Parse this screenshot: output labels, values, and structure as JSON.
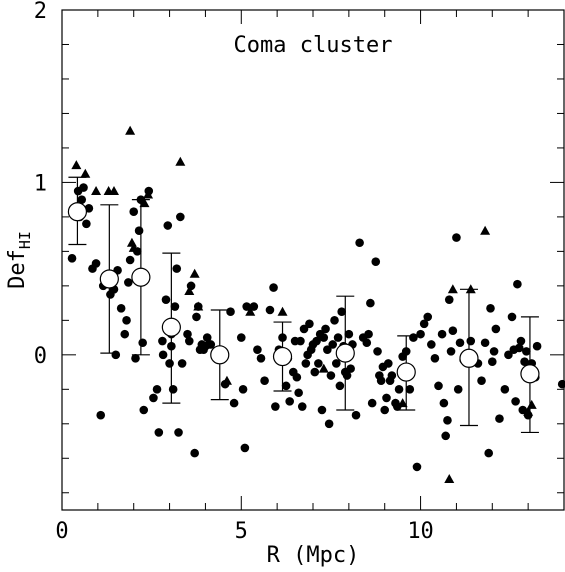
{
  "chart_data": {
    "type": "scatter",
    "title": "Coma cluster",
    "xlabel": "R (Mpc)",
    "ylabel_main": "Def",
    "ylabel_sub": "HI",
    "xlim": [
      0,
      14
    ],
    "ylim": [
      -0.9,
      2
    ],
    "x_ticks": [
      0,
      5,
      10
    ],
    "y_ticks": [
      0,
      1,
      2
    ],
    "grid": false,
    "series": [
      {
        "marker": "filled-circle",
        "points": [
          [
            0.28,
            0.56
          ],
          [
            0.38,
            0.83
          ],
          [
            0.45,
            0.95
          ],
          [
            0.5,
            0.8
          ],
          [
            0.55,
            0.9
          ],
          [
            0.6,
            0.97
          ],
          [
            0.68,
            0.76
          ],
          [
            0.75,
            0.85
          ],
          [
            0.85,
            0.5
          ],
          [
            0.95,
            0.53
          ],
          [
            1.08,
            -0.35
          ],
          [
            1.15,
            0.4
          ],
          [
            1.35,
            0.35
          ],
          [
            1.45,
            0.38
          ],
          [
            1.5,
            0.0
          ],
          [
            1.55,
            0.49
          ],
          [
            1.65,
            0.27
          ],
          [
            1.75,
            0.12
          ],
          [
            1.8,
            0.2
          ],
          [
            1.85,
            0.42
          ],
          [
            1.9,
            0.55
          ],
          [
            2.0,
            0.83
          ],
          [
            2.05,
            -0.02
          ],
          [
            2.1,
            0.6
          ],
          [
            2.15,
            0.72
          ],
          [
            2.2,
            0.9
          ],
          [
            2.25,
            0.07
          ],
          [
            2.28,
            -0.32
          ],
          [
            2.32,
            0.45
          ],
          [
            2.42,
            0.95
          ],
          [
            2.55,
            -0.25
          ],
          [
            2.65,
            -0.2
          ],
          [
            2.7,
            -0.45
          ],
          [
            2.8,
            0.08
          ],
          [
            2.82,
            0.0
          ],
          [
            2.9,
            0.32
          ],
          [
            2.95,
            0.75
          ],
          [
            3.0,
            -0.05
          ],
          [
            3.05,
            0.05
          ],
          [
            3.05,
            0.12
          ],
          [
            3.1,
            -0.2
          ],
          [
            3.15,
            0.28
          ],
          [
            3.2,
            0.5
          ],
          [
            3.25,
            -0.45
          ],
          [
            3.3,
            0.8
          ],
          [
            3.35,
            -0.05
          ],
          [
            3.5,
            0.12
          ],
          [
            3.55,
            0.08
          ],
          [
            3.6,
            0.4
          ],
          [
            3.7,
            -0.57
          ],
          [
            3.75,
            0.22
          ],
          [
            3.8,
            0.28
          ],
          [
            3.85,
            0.03
          ],
          [
            3.9,
            0.06
          ],
          [
            3.95,
            0.03
          ],
          [
            4.0,
            0.05
          ],
          [
            4.05,
            0.1
          ],
          [
            4.1,
            0.06
          ],
          [
            4.15,
            0.06
          ],
          [
            4.3,
            0.0
          ],
          [
            4.55,
            -0.17
          ],
          [
            4.7,
            0.25
          ],
          [
            4.8,
            -0.28
          ],
          [
            5.0,
            0.1
          ],
          [
            5.05,
            -0.2
          ],
          [
            5.1,
            -0.54
          ],
          [
            5.15,
            0.28
          ],
          [
            5.35,
            0.28
          ],
          [
            5.45,
            0.03
          ],
          [
            5.55,
            -0.02
          ],
          [
            5.65,
            -0.15
          ],
          [
            5.8,
            0.26
          ],
          [
            5.9,
            0.39
          ],
          [
            5.95,
            -0.3
          ],
          [
            6.05,
            0.03
          ],
          [
            6.15,
            0.1
          ],
          [
            6.25,
            -0.18
          ],
          [
            6.3,
            -0.02
          ],
          [
            6.35,
            -0.27
          ],
          [
            6.45,
            -0.1
          ],
          [
            6.5,
            0.08
          ],
          [
            6.55,
            -0.13
          ],
          [
            6.6,
            -0.22
          ],
          [
            6.65,
            0.08
          ],
          [
            6.7,
            -0.3
          ],
          [
            6.75,
            0.15
          ],
          [
            6.8,
            -0.05
          ],
          [
            6.85,
            0.0
          ],
          [
            6.9,
            0.18
          ],
          [
            6.95,
            0.03
          ],
          [
            7.0,
            0.06
          ],
          [
            7.05,
            -0.1
          ],
          [
            7.1,
            0.08
          ],
          [
            7.15,
            -0.05
          ],
          [
            7.2,
            0.12
          ],
          [
            7.25,
            -0.32
          ],
          [
            7.3,
            0.1
          ],
          [
            7.35,
            0.15
          ],
          [
            7.4,
            0.03
          ],
          [
            7.45,
            -0.4
          ],
          [
            7.5,
            -0.12
          ],
          [
            7.55,
            0.06
          ],
          [
            7.6,
            0.2
          ],
          [
            7.65,
            -0.05
          ],
          [
            7.7,
            0.1
          ],
          [
            7.75,
            -0.18
          ],
          [
            7.8,
            0.25
          ],
          [
            7.85,
            0.05
          ],
          [
            7.9,
            -0.1
          ],
          [
            7.95,
            -0.12
          ],
          [
            8.0,
            0.12
          ],
          [
            8.05,
            -0.08
          ],
          [
            8.1,
            0.06
          ],
          [
            8.2,
            -0.35
          ],
          [
            8.3,
            0.65
          ],
          [
            8.4,
            0.1
          ],
          [
            8.5,
            0.07
          ],
          [
            8.55,
            0.12
          ],
          [
            8.6,
            0.3
          ],
          [
            8.65,
            -0.28
          ],
          [
            8.75,
            0.54
          ],
          [
            8.8,
            0.02
          ],
          [
            8.85,
            -0.12
          ],
          [
            8.9,
            -0.15
          ],
          [
            8.95,
            -0.07
          ],
          [
            9.0,
            -0.32
          ],
          [
            9.05,
            -0.25
          ],
          [
            9.1,
            -0.05
          ],
          [
            9.15,
            -0.15
          ],
          [
            9.2,
            -0.12
          ],
          [
            9.3,
            -0.28
          ],
          [
            9.35,
            -0.3
          ],
          [
            9.4,
            -0.2
          ],
          [
            9.5,
            -0.01
          ],
          [
            9.6,
            0.02
          ],
          [
            9.7,
            -0.2
          ],
          [
            9.8,
            0.1
          ],
          [
            9.9,
            -0.65
          ],
          [
            10.0,
            0.12
          ],
          [
            10.1,
            0.18
          ],
          [
            10.2,
            0.22
          ],
          [
            10.3,
            0.06
          ],
          [
            10.4,
            -0.02
          ],
          [
            10.5,
            -0.18
          ],
          [
            10.6,
            0.12
          ],
          [
            10.65,
            -0.28
          ],
          [
            10.7,
            -0.47
          ],
          [
            10.75,
            -0.38
          ],
          [
            10.8,
            0.32
          ],
          [
            10.85,
            0.02
          ],
          [
            10.9,
            0.14
          ],
          [
            11.0,
            0.68
          ],
          [
            11.05,
            -0.2
          ],
          [
            11.1,
            0.07
          ],
          [
            11.2,
            -0.03
          ],
          [
            11.4,
            0.08
          ],
          [
            11.6,
            -0.05
          ],
          [
            11.7,
            -0.15
          ],
          [
            11.8,
            0.07
          ],
          [
            11.9,
            -0.57
          ],
          [
            11.95,
            0.27
          ],
          [
            12.0,
            -0.04
          ],
          [
            12.05,
            0.02
          ],
          [
            12.1,
            0.15
          ],
          [
            12.2,
            -0.37
          ],
          [
            12.35,
            -0.2
          ],
          [
            12.45,
            0.0
          ],
          [
            12.55,
            0.22
          ],
          [
            12.6,
            0.03
          ],
          [
            12.65,
            -0.27
          ],
          [
            12.7,
            0.41
          ],
          [
            12.75,
            0.04
          ],
          [
            12.8,
            0.08
          ],
          [
            12.85,
            -0.32
          ],
          [
            12.9,
            -0.04
          ],
          [
            12.95,
            0.02
          ],
          [
            13.0,
            -0.35
          ],
          [
            13.1,
            -0.05
          ],
          [
            13.2,
            -0.13
          ],
          [
            13.25,
            0.05
          ],
          [
            13.95,
            -0.17
          ]
        ]
      },
      {
        "marker": "filled-triangle",
        "points": [
          [
            0.4,
            1.1
          ],
          [
            0.65,
            1.05
          ],
          [
            0.95,
            0.95
          ],
          [
            1.3,
            0.95
          ],
          [
            1.45,
            0.95
          ],
          [
            1.9,
            1.3
          ],
          [
            1.95,
            0.65
          ],
          [
            2.0,
            0.62
          ],
          [
            2.3,
            0.88
          ],
          [
            2.4,
            0.93
          ],
          [
            3.3,
            1.12
          ],
          [
            3.55,
            0.37
          ],
          [
            3.7,
            0.47
          ],
          [
            3.8,
            0.28
          ],
          [
            4.6,
            -0.15
          ],
          [
            5.25,
            0.25
          ],
          [
            6.15,
            0.25
          ],
          [
            7.3,
            -0.08
          ],
          [
            8.0,
            0.01
          ],
          [
            9.5,
            -0.28
          ],
          [
            10.8,
            -0.72
          ],
          [
            10.9,
            0.38
          ],
          [
            11.4,
            0.38
          ],
          [
            11.8,
            0.72
          ],
          [
            13.0,
            -0.33
          ],
          [
            13.1,
            -0.29
          ]
        ]
      },
      {
        "marker": "open-circle-errorbar",
        "points": [
          [
            0.43,
            0.83,
            0.64,
            1.03
          ],
          [
            1.32,
            0.44,
            0.01,
            0.87
          ],
          [
            2.2,
            0.45,
            0.0,
            0.9
          ],
          [
            3.05,
            0.16,
            -0.28,
            0.59
          ],
          [
            4.4,
            0.0,
            -0.26,
            0.26
          ],
          [
            6.15,
            -0.01,
            -0.21,
            0.19
          ],
          [
            7.9,
            0.01,
            -0.32,
            0.34
          ],
          [
            9.6,
            -0.1,
            -0.32,
            0.11
          ],
          [
            11.35,
            -0.02,
            -0.41,
            0.38
          ],
          [
            13.05,
            -0.11,
            -0.45,
            0.22
          ]
        ]
      }
    ]
  }
}
